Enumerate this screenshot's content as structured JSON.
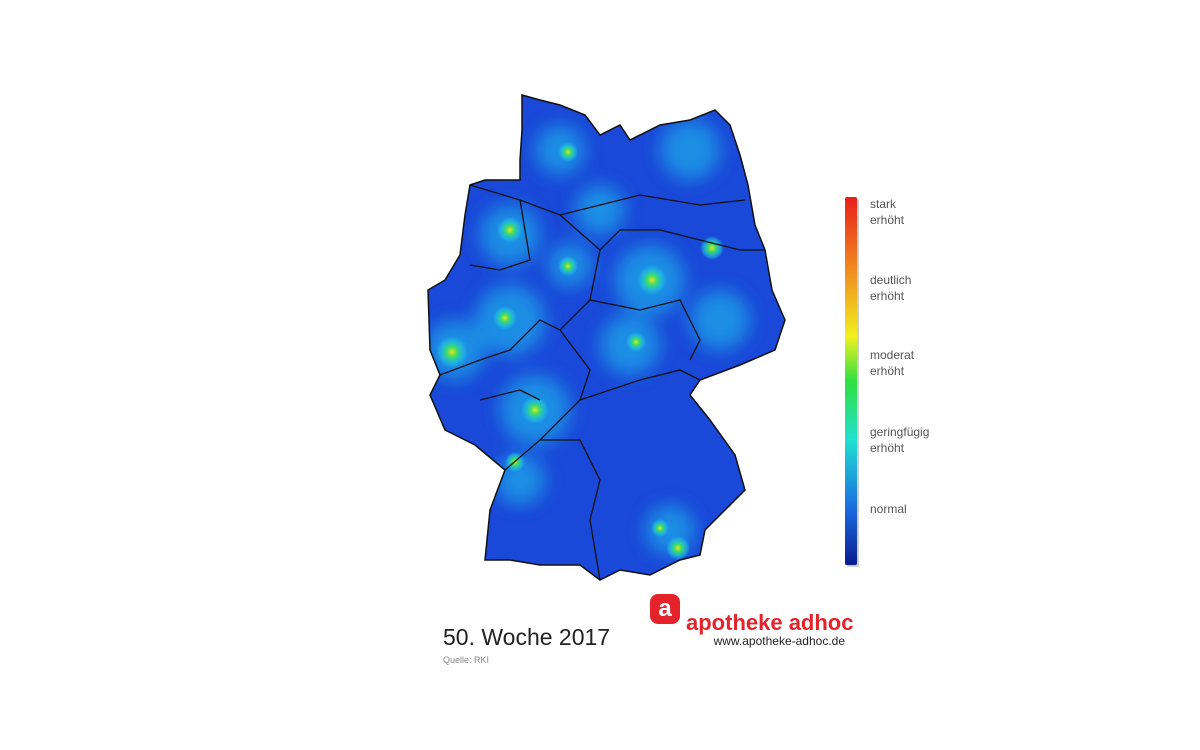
{
  "legend": {
    "levels": [
      {
        "lines": [
          "stark",
          "erhöht"
        ]
      },
      {
        "lines": [
          "deutlich",
          "erhöht"
        ]
      },
      {
        "lines": [
          "moderat",
          "erhöht"
        ]
      },
      {
        "lines": [
          "geringfügig",
          "erhöht"
        ]
      },
      {
        "lines": [
          "normal"
        ]
      }
    ]
  },
  "caption": {
    "title": "50. Woche 2017",
    "source": "Quelle: RKI"
  },
  "logo": {
    "mark": "a",
    "name": "apotheke adhoc",
    "url": "www.apotheke-adhoc.de"
  }
}
